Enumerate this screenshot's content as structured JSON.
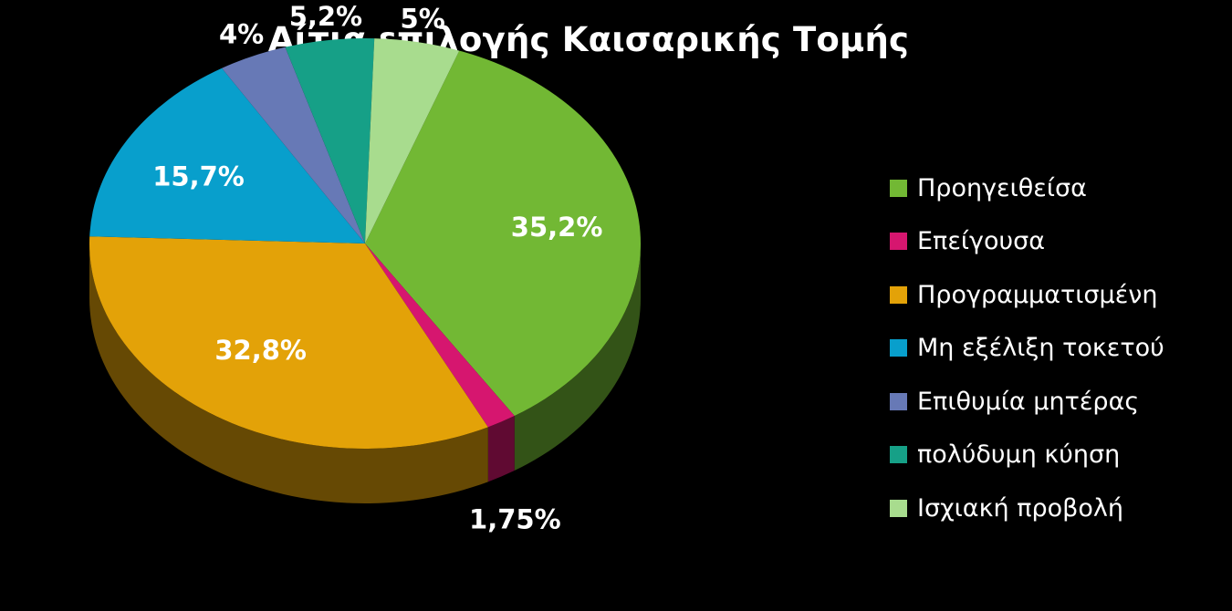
{
  "chart_data": {
    "type": "pie",
    "title": "Αίτια επιλογής Καισαρικής Τομής",
    "legend_position": "right",
    "slices": [
      {
        "name": "Προηγειθείσα",
        "value": 35.2,
        "label": "35,2%",
        "color": "#72B834"
      },
      {
        "name": "Επείγουσα",
        "value": 1.75,
        "label": "1,75%",
        "color": "#D6166F"
      },
      {
        "name": "Προγραμματισμένη",
        "value": 32.8,
        "label": "32,8%",
        "color": "#E3A208"
      },
      {
        "name": "Μη εξέλιξη τοκετού",
        "value": 15.7,
        "label": "15,7%",
        "color": "#089FCC"
      },
      {
        "name": "Επιθυμία  μητέρας",
        "value": 4,
        "label": "4%",
        "color": "#6779B6"
      },
      {
        "name": "πολύδυμη κύηση",
        "value": 5.2,
        "label": "5,2%",
        "color": "#16A087"
      },
      {
        "name": "Ισχιακή προβολή",
        "value": 5,
        "label": "5%",
        "color": "#A8DC8E"
      }
    ]
  }
}
